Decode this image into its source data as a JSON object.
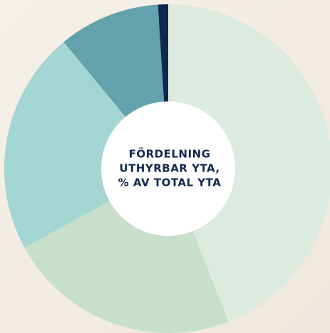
{
  "chart_data": {
    "type": "pie",
    "title": [
      "FÖRDELNING",
      "UTHYRBAR YTA,",
      "% AV TOTAL YTA"
    ],
    "categories": [
      null,
      null,
      null,
      null,
      null
    ],
    "values": [
      44,
      23,
      22,
      10,
      1
    ],
    "colors": [
      "#dceae0",
      "#c8e0cb",
      "#a3d6d3",
      "#62a2ad",
      "#10284f"
    ],
    "donut": true
  }
}
